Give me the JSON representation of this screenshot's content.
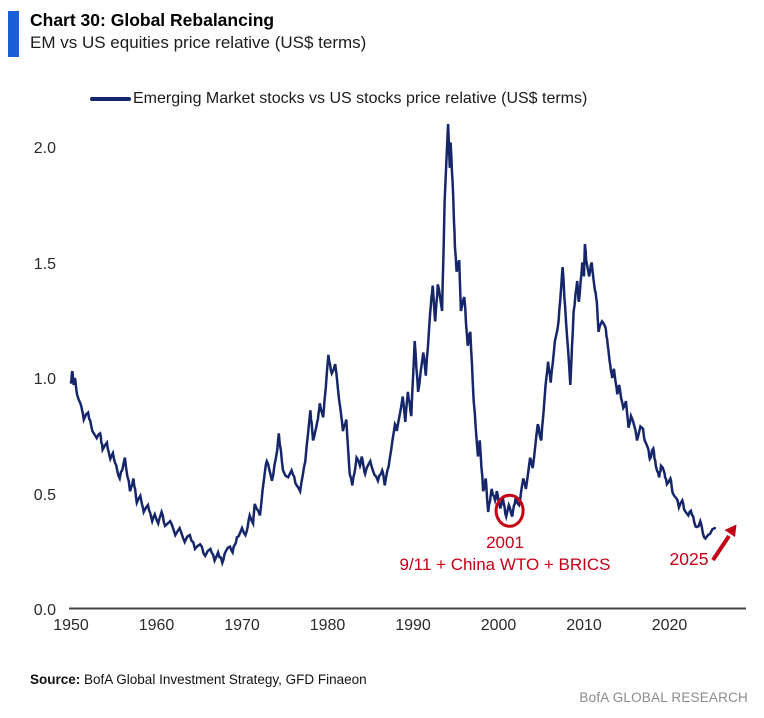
{
  "header": {
    "title": "Chart 30: Global Rebalancing",
    "subtitle": "EM vs US equities price relative (US$ terms)"
  },
  "legend": {
    "label": "Emerging Market stocks vs US stocks price relative (US$ terms)"
  },
  "colors": {
    "line_navy": "#16266b",
    "annotation_red": "#c40017",
    "accent_bar_blue": "#1a5fd8",
    "axis_gray": "#444444",
    "branding_gray": "#8b8b8b"
  },
  "chart_data": {
    "type": "line",
    "title": "Chart 30: Global Rebalancing",
    "subtitle": "EM vs US equities price relative (US$ terms)",
    "xlabel": "",
    "ylabel": "",
    "x_ticks": [
      1950,
      1960,
      1970,
      1980,
      1990,
      2000,
      2010,
      2020
    ],
    "y_ticks": [
      0.0,
      0.5,
      1.0,
      1.5,
      2.0
    ],
    "xlim": [
      1950,
      2026
    ],
    "ylim": [
      0.0,
      2.15
    ],
    "grid": false,
    "legend_position": "top",
    "series": [
      {
        "name": "Emerging Market stocks vs US stocks price relative (US$ terms)",
        "points": [
          [
            1950.0,
            0.98
          ],
          [
            1950.15,
            1.03
          ],
          [
            1950.3,
            0.97
          ],
          [
            1950.45,
            1.0
          ],
          [
            1950.7,
            0.93
          ],
          [
            1951.1,
            0.89
          ],
          [
            1951.5,
            0.82
          ],
          [
            1952.0,
            0.85
          ],
          [
            1952.5,
            0.77
          ],
          [
            1953.0,
            0.74
          ],
          [
            1953.4,
            0.76
          ],
          [
            1953.7,
            0.69
          ],
          [
            1954.2,
            0.72
          ],
          [
            1954.6,
            0.65
          ],
          [
            1954.9,
            0.675
          ],
          [
            1955.4,
            0.6
          ],
          [
            1955.7,
            0.565
          ],
          [
            1956.3,
            0.655
          ],
          [
            1956.9,
            0.51
          ],
          [
            1957.3,
            0.565
          ],
          [
            1957.7,
            0.46
          ],
          [
            1958.1,
            0.49
          ],
          [
            1958.5,
            0.42
          ],
          [
            1959.0,
            0.45
          ],
          [
            1959.5,
            0.38
          ],
          [
            1959.8,
            0.41
          ],
          [
            1960.2,
            0.37
          ],
          [
            1960.6,
            0.42
          ],
          [
            1961.0,
            0.36
          ],
          [
            1961.6,
            0.38
          ],
          [
            1962.2,
            0.32
          ],
          [
            1962.7,
            0.35
          ],
          [
            1963.3,
            0.29
          ],
          [
            1963.9,
            0.32
          ],
          [
            1964.5,
            0.26
          ],
          [
            1965.1,
            0.28
          ],
          [
            1965.7,
            0.23
          ],
          [
            1966.3,
            0.26
          ],
          [
            1966.8,
            0.21
          ],
          [
            1967.2,
            0.245
          ],
          [
            1967.7,
            0.2
          ],
          [
            1968.1,
            0.25
          ],
          [
            1968.6,
            0.27
          ],
          [
            1968.9,
            0.245
          ],
          [
            1969.4,
            0.31
          ],
          [
            1970.0,
            0.35
          ],
          [
            1970.4,
            0.32
          ],
          [
            1970.9,
            0.405
          ],
          [
            1971.3,
            0.37
          ],
          [
            1971.5,
            0.455
          ],
          [
            1972.1,
            0.405
          ],
          [
            1972.7,
            0.6
          ],
          [
            1972.9,
            0.64
          ],
          [
            1973.5,
            0.555
          ],
          [
            1974.1,
            0.685
          ],
          [
            1974.3,
            0.76
          ],
          [
            1974.8,
            0.6
          ],
          [
            1975.4,
            0.57
          ],
          [
            1975.8,
            0.6
          ],
          [
            1976.4,
            0.535
          ],
          [
            1976.8,
            0.51
          ],
          [
            1977.4,
            0.64
          ],
          [
            1978.0,
            0.86
          ],
          [
            1978.3,
            0.73
          ],
          [
            1978.8,
            0.81
          ],
          [
            1979.1,
            0.89
          ],
          [
            1979.5,
            0.83
          ],
          [
            1980.1,
            1.1
          ],
          [
            1980.5,
            1.02
          ],
          [
            1980.9,
            1.06
          ],
          [
            1981.5,
            0.87
          ],
          [
            1981.8,
            0.77
          ],
          [
            1982.2,
            0.82
          ],
          [
            1982.6,
            0.585
          ],
          [
            1982.9,
            0.535
          ],
          [
            1983.4,
            0.655
          ],
          [
            1983.8,
            0.62
          ],
          [
            1984.0,
            0.66
          ],
          [
            1984.4,
            0.585
          ],
          [
            1985.0,
            0.64
          ],
          [
            1985.3,
            0.6
          ],
          [
            1985.9,
            0.555
          ],
          [
            1986.4,
            0.6
          ],
          [
            1986.7,
            0.535
          ],
          [
            1987.3,
            0.655
          ],
          [
            1987.9,
            0.8
          ],
          [
            1988.1,
            0.77
          ],
          [
            1988.8,
            0.92
          ],
          [
            1989.1,
            0.81
          ],
          [
            1989.4,
            0.94
          ],
          [
            1989.8,
            0.835
          ],
          [
            1990.2,
            1.16
          ],
          [
            1990.6,
            0.94
          ],
          [
            1991.2,
            1.11
          ],
          [
            1991.5,
            1.01
          ],
          [
            1992.0,
            1.28
          ],
          [
            1992.3,
            1.4
          ],
          [
            1992.6,
            1.245
          ],
          [
            1992.9,
            1.405
          ],
          [
            1993.4,
            1.29
          ],
          [
            1993.7,
            1.76
          ],
          [
            1994.1,
            2.1
          ],
          [
            1994.3,
            1.91
          ],
          [
            1994.4,
            2.02
          ],
          [
            1994.7,
            1.79
          ],
          [
            1994.9,
            1.57
          ],
          [
            1995.1,
            1.46
          ],
          [
            1995.4,
            1.51
          ],
          [
            1995.6,
            1.29
          ],
          [
            1996.0,
            1.35
          ],
          [
            1996.4,
            1.14
          ],
          [
            1996.7,
            1.2
          ],
          [
            1997.1,
            0.9
          ],
          [
            1997.6,
            0.66
          ],
          [
            1997.8,
            0.73
          ],
          [
            1998.2,
            0.51
          ],
          [
            1998.5,
            0.565
          ],
          [
            1998.8,
            0.42
          ],
          [
            1999.2,
            0.52
          ],
          [
            1999.6,
            0.47
          ],
          [
            1999.8,
            0.51
          ],
          [
            2000.2,
            0.435
          ],
          [
            2000.5,
            0.48
          ],
          [
            2000.9,
            0.4
          ],
          [
            2001.2,
            0.45
          ],
          [
            2001.6,
            0.4
          ],
          [
            2002.0,
            0.48
          ],
          [
            2002.4,
            0.45
          ],
          [
            2002.9,
            0.565
          ],
          [
            2003.2,
            0.52
          ],
          [
            2003.7,
            0.655
          ],
          [
            2004.0,
            0.61
          ],
          [
            2004.6,
            0.8
          ],
          [
            2005.0,
            0.73
          ],
          [
            2005.4,
            0.92
          ],
          [
            2005.8,
            1.07
          ],
          [
            2006.1,
            0.98
          ],
          [
            2006.6,
            1.16
          ],
          [
            2007.0,
            1.24
          ],
          [
            2007.2,
            1.33
          ],
          [
            2007.5,
            1.48
          ],
          [
            2007.9,
            1.245
          ],
          [
            2008.4,
            0.97
          ],
          [
            2008.6,
            1.14
          ],
          [
            2008.8,
            1.29
          ],
          [
            2009.2,
            1.42
          ],
          [
            2009.4,
            1.33
          ],
          [
            2009.8,
            1.5
          ],
          [
            2010.0,
            1.44
          ],
          [
            2010.1,
            1.58
          ],
          [
            2010.3,
            1.5
          ],
          [
            2010.6,
            1.44
          ],
          [
            2010.9,
            1.5
          ],
          [
            2011.3,
            1.375
          ],
          [
            2011.5,
            1.33
          ],
          [
            2011.7,
            1.2
          ],
          [
            2012.1,
            1.245
          ],
          [
            2012.5,
            1.22
          ],
          [
            2012.7,
            1.17
          ],
          [
            2013.0,
            1.07
          ],
          [
            2013.3,
            1.0
          ],
          [
            2013.5,
            1.04
          ],
          [
            2013.9,
            0.93
          ],
          [
            2014.1,
            0.97
          ],
          [
            2014.6,
            0.87
          ],
          [
            2014.9,
            0.9
          ],
          [
            2015.2,
            0.785
          ],
          [
            2015.5,
            0.835
          ],
          [
            2015.9,
            0.79
          ],
          [
            2016.2,
            0.73
          ],
          [
            2016.6,
            0.79
          ],
          [
            2016.9,
            0.78
          ],
          [
            2017.1,
            0.73
          ],
          [
            2017.5,
            0.695
          ],
          [
            2017.7,
            0.65
          ],
          [
            2018.1,
            0.695
          ],
          [
            2018.4,
            0.62
          ],
          [
            2018.8,
            0.57
          ],
          [
            2019.0,
            0.62
          ],
          [
            2019.4,
            0.59
          ],
          [
            2019.7,
            0.54
          ],
          [
            2020.1,
            0.565
          ],
          [
            2020.4,
            0.5
          ],
          [
            2020.8,
            0.48
          ],
          [
            2021.1,
            0.44
          ],
          [
            2021.5,
            0.47
          ],
          [
            2021.8,
            0.425
          ],
          [
            2022.2,
            0.405
          ],
          [
            2022.5,
            0.425
          ],
          [
            2022.9,
            0.375
          ],
          [
            2023.2,
            0.355
          ],
          [
            2023.6,
            0.38
          ],
          [
            2023.9,
            0.33
          ],
          [
            2024.2,
            0.305
          ],
          [
            2024.5,
            0.32
          ],
          [
            2025.0,
            0.345
          ],
          [
            2025.3,
            0.35
          ]
        ]
      }
    ],
    "annotations": {
      "circled_low": {
        "label": "2001",
        "sublabel": "9/11 + China WTO + BRICS",
        "anchor_year": 2001.3,
        "anchor_value": 0.425
      },
      "end_marker": {
        "label": "2025",
        "anchor_year": 2025.3,
        "anchor_value": 0.35
      }
    }
  },
  "footer": {
    "source_label": "Source:",
    "source_text": " BofA Global Investment Strategy, GFD Finaeon",
    "branding": "BofA GLOBAL RESEARCH"
  }
}
